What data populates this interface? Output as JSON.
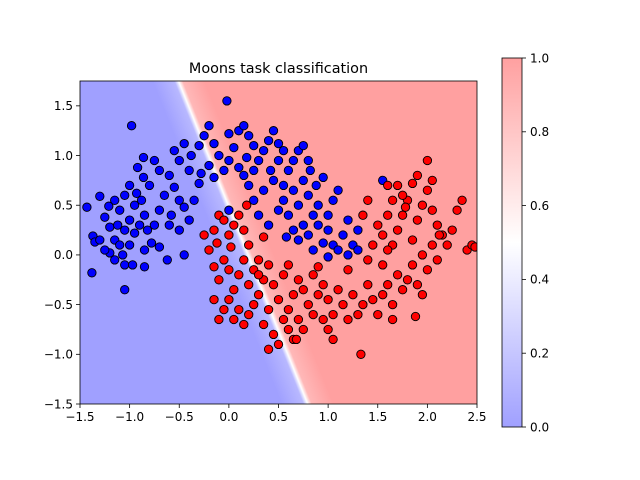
{
  "chart_data": {
    "type": "scatter",
    "title": "Moons task classification",
    "xlabel": "",
    "ylabel": "",
    "xlim": [
      -1.5,
      2.5
    ],
    "ylim": [
      -1.5,
      1.75
    ],
    "xticks": [
      -1.5,
      -1.0,
      -0.5,
      0.0,
      0.5,
      1.0,
      1.5,
      2.0,
      2.5
    ],
    "xtick_labels": [
      "−1.5",
      "−1.0",
      "−0.5",
      "0.0",
      "0.5",
      "1.0",
      "1.5",
      "2.0",
      "2.5"
    ],
    "yticks": [
      -1.5,
      -1.0,
      -0.5,
      0.0,
      0.5,
      1.0,
      1.5
    ],
    "ytick_labels": [
      "−1.5",
      "−1.0",
      "−0.5",
      "0.0",
      "0.5",
      "1.0",
      "1.5"
    ],
    "grid": false,
    "background": "decision-boundary probability map, blue (0) to white (0.5) to red (1); boundary runs diagonally from about (-1.05,-1.5) through (0.3,0.3) curving to (1.95,1.75)",
    "colorbar": {
      "range": [
        0.0,
        1.0
      ],
      "ticks": [
        0.0,
        0.2,
        0.4,
        0.6,
        0.8,
        1.0
      ],
      "tick_labels": [
        "0.0",
        "0.2",
        "0.4",
        "0.6",
        "0.8",
        "1.0"
      ],
      "colors": [
        "#a0a0ff",
        "#ffffff",
        "#ffa0a0"
      ]
    },
    "series": [
      {
        "class": 0,
        "color": "#0000ff",
        "edgecolor": "#000000",
        "values": [
          [
            -1.3,
            0.59
          ],
          [
            -1.43,
            0.48
          ],
          [
            -1.37,
            0.19
          ],
          [
            -1.35,
            0.13
          ],
          [
            -1.3,
            0.15
          ],
          [
            -1.2,
            0.28
          ],
          [
            -1.25,
            0.38
          ],
          [
            -1.21,
            0.49
          ],
          [
            -1.15,
            0.55
          ],
          [
            -1.1,
            0.45
          ],
          [
            -1.12,
            0.3
          ],
          [
            -1.15,
            0.15
          ],
          [
            -1.1,
            0.1
          ],
          [
            -1.07,
            0.0
          ],
          [
            -1.05,
            -0.1
          ],
          [
            -1.15,
            -0.05
          ],
          [
            -1.2,
            0.02
          ],
          [
            -1.38,
            -0.18
          ],
          [
            -1.05,
            -0.35
          ],
          [
            -0.97,
            -0.1
          ],
          [
            -1.0,
            0.1
          ],
          [
            -0.95,
            0.22
          ],
          [
            -1.05,
            0.25
          ],
          [
            -1.0,
            0.35
          ],
          [
            -0.95,
            0.5
          ],
          [
            -1.05,
            0.6
          ],
          [
            -1.0,
            0.7
          ],
          [
            -0.93,
            0.62
          ],
          [
            -0.88,
            0.55
          ],
          [
            -0.85,
            0.4
          ],
          [
            -0.9,
            0.3
          ],
          [
            -0.82,
            0.25
          ],
          [
            -0.78,
            0.12
          ],
          [
            -0.85,
            0.05
          ],
          [
            -0.7,
            0.08
          ],
          [
            -0.62,
            -0.05
          ],
          [
            -0.75,
            0.3
          ],
          [
            -0.7,
            0.45
          ],
          [
            -0.65,
            0.6
          ],
          [
            -0.8,
            0.7
          ],
          [
            -0.86,
            0.78
          ],
          [
            -0.92,
            0.88
          ],
          [
            -0.86,
            0.98
          ],
          [
            -0.75,
            0.95
          ],
          [
            -0.7,
            0.85
          ],
          [
            -0.6,
            0.8
          ],
          [
            -0.55,
            0.68
          ],
          [
            -0.5,
            0.55
          ],
          [
            -0.45,
            0.48
          ],
          [
            -0.58,
            0.4
          ],
          [
            -0.6,
            0.3
          ],
          [
            -0.5,
            0.25
          ],
          [
            -0.4,
            0.35
          ],
          [
            -0.35,
            0.55
          ],
          [
            -0.3,
            0.72
          ],
          [
            -0.4,
            0.85
          ],
          [
            -0.5,
            0.95
          ],
          [
            -0.55,
            1.05
          ],
          [
            -0.45,
            1.12
          ],
          [
            -0.38,
            1.0
          ],
          [
            -0.3,
            1.1
          ],
          [
            -0.25,
            1.2
          ],
          [
            -0.2,
            1.3
          ],
          [
            -0.15,
            1.12
          ],
          [
            -0.1,
            1.0
          ],
          [
            -0.2,
            0.9
          ],
          [
            -0.28,
            0.82
          ],
          [
            -0.15,
            0.78
          ],
          [
            -0.05,
            0.85
          ],
          [
            0.0,
            0.95
          ],
          [
            0.05,
            1.08
          ],
          [
            0.0,
            1.22
          ],
          [
            0.1,
            1.25
          ],
          [
            0.15,
            1.3
          ],
          [
            0.2,
            1.2
          ],
          [
            0.25,
            1.1
          ],
          [
            0.18,
            0.98
          ],
          [
            0.1,
            0.88
          ],
          [
            0.15,
            0.8
          ],
          [
            0.25,
            0.85
          ],
          [
            0.3,
            0.95
          ],
          [
            0.35,
            1.05
          ],
          [
            0.4,
            1.15
          ],
          [
            0.45,
            1.25
          ],
          [
            0.5,
            1.12
          ],
          [
            0.55,
            1.05
          ],
          [
            0.5,
            0.95
          ],
          [
            0.42,
            0.85
          ],
          [
            0.45,
            0.75
          ],
          [
            0.55,
            0.7
          ],
          [
            0.6,
            0.85
          ],
          [
            0.65,
            0.95
          ],
          [
            0.7,
            1.05
          ],
          [
            0.75,
            1.1
          ],
          [
            0.8,
            0.95
          ],
          [
            0.82,
            0.85
          ],
          [
            0.75,
            0.75
          ],
          [
            0.65,
            0.65
          ],
          [
            0.55,
            0.55
          ],
          [
            0.5,
            0.45
          ],
          [
            0.6,
            0.4
          ],
          [
            0.7,
            0.5
          ],
          [
            0.8,
            0.6
          ],
          [
            0.88,
            0.7
          ],
          [
            0.95,
            0.78
          ],
          [
            0.9,
            0.5
          ],
          [
            0.85,
            0.4
          ],
          [
            0.75,
            0.3
          ],
          [
            0.65,
            0.25
          ],
          [
            0.7,
            0.15
          ],
          [
            0.8,
            0.2
          ],
          [
            0.9,
            0.3
          ],
          [
            1.0,
            0.4
          ],
          [
            1.05,
            0.55
          ],
          [
            1.1,
            0.65
          ],
          [
            1.0,
            0.25
          ],
          [
            0.95,
            0.12
          ],
          [
            0.85,
            0.05
          ],
          [
            1.05,
            0.1
          ],
          [
            1.15,
            0.2
          ],
          [
            1.2,
            0.35
          ],
          [
            1.25,
            0.1
          ],
          [
            1.2,
            0.0
          ],
          [
            1.1,
            0.05
          ],
          [
            1.0,
            -0.02
          ],
          [
            1.3,
            0.05
          ],
          [
            1.3,
            0.25
          ],
          [
            -0.02,
            1.55
          ],
          [
            -0.98,
            1.3
          ],
          [
            0.25,
            0.55
          ],
          [
            0.35,
            0.65
          ],
          [
            0.2,
            0.7
          ],
          [
            0.3,
            0.4
          ],
          [
            0.4,
            0.3
          ],
          [
            -0.85,
            -0.12
          ],
          [
            -1.25,
            0.05
          ],
          [
            -0.45,
            0.0
          ],
          [
            0.58,
            0.18
          ],
          [
            1.55,
            0.75
          ],
          [
            0.0,
            0.45
          ]
        ]
      },
      {
        "class": 1,
        "color": "#ff0000",
        "edgecolor": "#000000",
        "values": [
          [
            -0.25,
            0.2
          ],
          [
            -0.2,
            0.05
          ],
          [
            -0.15,
            0.25
          ],
          [
            -0.1,
            0.4
          ],
          [
            -0.05,
            0.35
          ],
          [
            0.0,
            0.2
          ],
          [
            0.05,
            0.3
          ],
          [
            0.1,
            0.4
          ],
          [
            0.15,
            0.25
          ],
          [
            0.2,
            0.1
          ],
          [
            -0.12,
            0.12
          ],
          [
            -0.05,
            -0.05
          ],
          [
            0.0,
            -0.15
          ],
          [
            -0.1,
            -0.25
          ],
          [
            -0.15,
            -0.12
          ],
          [
            -0.15,
            -0.45
          ],
          [
            -0.05,
            -0.55
          ],
          [
            0.0,
            -0.45
          ],
          [
            0.05,
            -0.35
          ],
          [
            0.1,
            -0.2
          ],
          [
            0.15,
            -0.05
          ],
          [
            0.2,
            -0.3
          ],
          [
            0.25,
            -0.15
          ],
          [
            0.3,
            -0.05
          ],
          [
            0.35,
            -0.25
          ],
          [
            0.3,
            -0.4
          ],
          [
            0.25,
            -0.5
          ],
          [
            0.2,
            -0.6
          ],
          [
            0.15,
            -0.7
          ],
          [
            0.1,
            -0.55
          ],
          [
            0.4,
            -0.1
          ],
          [
            0.45,
            -0.3
          ],
          [
            0.5,
            -0.45
          ],
          [
            0.4,
            -0.55
          ],
          [
            0.35,
            -0.7
          ],
          [
            0.45,
            -0.8
          ],
          [
            0.5,
            -0.9
          ],
          [
            0.55,
            -0.65
          ],
          [
            0.6,
            -0.55
          ],
          [
            0.65,
            -0.4
          ],
          [
            0.55,
            -0.2
          ],
          [
            0.6,
            -0.1
          ],
          [
            0.7,
            -0.25
          ],
          [
            0.75,
            -0.35
          ],
          [
            0.8,
            -0.5
          ],
          [
            0.7,
            -0.65
          ],
          [
            0.65,
            -0.85
          ],
          [
            0.75,
            -0.75
          ],
          [
            0.85,
            -0.6
          ],
          [
            0.9,
            -0.4
          ],
          [
            0.85,
            -0.2
          ],
          [
            0.95,
            -0.3
          ],
          [
            1.0,
            -0.45
          ],
          [
            1.05,
            -0.6
          ],
          [
            1.0,
            -0.75
          ],
          [
            0.95,
            -0.65
          ],
          [
            1.1,
            -0.35
          ],
          [
            1.15,
            -0.5
          ],
          [
            1.2,
            -0.65
          ],
          [
            1.3,
            -0.6
          ],
          [
            1.25,
            -0.4
          ],
          [
            1.35,
            -0.5
          ],
          [
            1.4,
            -0.3
          ],
          [
            1.45,
            -0.45
          ],
          [
            1.5,
            -0.6
          ],
          [
            1.55,
            -0.4
          ],
          [
            1.6,
            -0.3
          ],
          [
            1.65,
            -0.5
          ],
          [
            1.7,
            -0.2
          ],
          [
            1.75,
            -0.35
          ],
          [
            1.8,
            -0.25
          ],
          [
            1.85,
            -0.1
          ],
          [
            1.9,
            -0.3
          ],
          [
            1.95,
            0.0
          ],
          [
            2.0,
            -0.15
          ],
          [
            2.05,
            0.1
          ],
          [
            2.1,
            -0.05
          ],
          [
            2.15,
            0.2
          ],
          [
            2.1,
            0.3
          ],
          [
            2.05,
            0.45
          ],
          [
            2.2,
            0.1
          ],
          [
            2.25,
            0.25
          ],
          [
            2.3,
            0.45
          ],
          [
            2.35,
            0.55
          ],
          [
            2.4,
            0.05
          ],
          [
            2.45,
            0.1
          ],
          [
            1.85,
            0.15
          ],
          [
            1.9,
            0.35
          ],
          [
            1.95,
            0.5
          ],
          [
            2.0,
            0.65
          ],
          [
            1.8,
            0.55
          ],
          [
            1.75,
            0.4
          ],
          [
            1.7,
            0.25
          ],
          [
            1.65,
            0.1
          ],
          [
            1.6,
            0.05
          ],
          [
            1.55,
            0.2
          ],
          [
            1.6,
            0.4
          ],
          [
            1.65,
            0.55
          ],
          [
            1.7,
            0.7
          ],
          [
            1.85,
            0.72
          ],
          [
            1.9,
            0.8
          ],
          [
            2.05,
            0.75
          ],
          [
            2.0,
            0.95
          ],
          [
            1.75,
            0.6
          ],
          [
            1.5,
            0.3
          ],
          [
            1.45,
            0.1
          ],
          [
            1.4,
            -0.05
          ],
          [
            1.55,
            -0.1
          ],
          [
            1.35,
            0.4
          ],
          [
            1.4,
            0.55
          ],
          [
            1.6,
            0.7
          ],
          [
            1.78,
            0.48
          ],
          [
            -0.1,
            -0.65
          ],
          [
            0.05,
            -0.65
          ],
          [
            0.4,
            -0.95
          ],
          [
            0.68,
            -0.85
          ],
          [
            1.33,
            -1.0
          ],
          [
            1.65,
            -0.65
          ],
          [
            1.88,
            -0.62
          ],
          [
            0.18,
            0.5
          ],
          [
            0.02,
            0.08
          ],
          [
            0.3,
            -0.2
          ],
          [
            0.9,
            -0.12
          ],
          [
            1.2,
            -0.15
          ],
          [
            2.48,
            0.08
          ],
          [
            2.12,
            0.2
          ],
          [
            1.95,
            -0.4
          ],
          [
            0.35,
            0.18
          ],
          [
            1.05,
            -0.85
          ],
          [
            0.6,
            -0.75
          ]
        ]
      }
    ]
  }
}
